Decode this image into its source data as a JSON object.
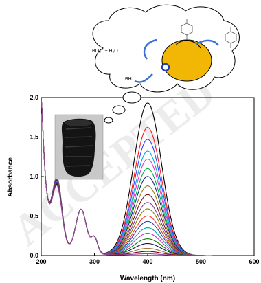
{
  "chart_data": {
    "type": "line",
    "xlabel": "Wavelength (nm)",
    "ylabel": "Absorbance",
    "xlim": [
      200,
      600
    ],
    "ylim": [
      0.0,
      2.0
    ],
    "x_ticks": [
      "200",
      "300",
      "400",
      "500",
      "600"
    ],
    "y_ticks": [
      "0,0",
      "0,5",
      "1,0",
      "1,5",
      "2,0"
    ],
    "grid": false,
    "legend": "none",
    "peak_nm": 400,
    "series": [
      {
        "color": "#000000",
        "peak": 1.93,
        "uv": 0.82
      },
      {
        "color": "#ff1a1a",
        "peak": 1.62,
        "uv": 0.81
      },
      {
        "color": "#3344ff",
        "peak": 1.47,
        "uv": 0.81
      },
      {
        "color": "#00aadd",
        "peak": 1.32,
        "uv": 0.8
      },
      {
        "color": "#ee33cc",
        "peak": 1.22,
        "uv": 0.8
      },
      {
        "color": "#00b050",
        "peak": 1.1,
        "uv": 0.79
      },
      {
        "color": "#1a237e",
        "peak": 1.0,
        "uv": 0.79
      },
      {
        "color": "#9c7a16",
        "peak": 0.88,
        "uv": 0.78
      },
      {
        "color": "#7a0f2a",
        "peak": 0.77,
        "uv": 0.78
      },
      {
        "color": "#7a3d9e",
        "peak": 0.67,
        "uv": 0.77
      },
      {
        "color": "#808000",
        "peak": 0.59,
        "uv": 0.77
      },
      {
        "color": "#ff3030",
        "peak": 0.5,
        "uv": 0.76
      },
      {
        "color": "#2a3fb0",
        "peak": 0.43,
        "uv": 0.76
      },
      {
        "color": "#00a0a0",
        "peak": 0.35,
        "uv": 0.75
      },
      {
        "color": "#c030c0",
        "peak": 0.28,
        "uv": 0.75
      },
      {
        "color": "#008000",
        "peak": 0.21,
        "uv": 0.74
      },
      {
        "color": "#101060",
        "peak": 0.15,
        "uv": 0.74
      },
      {
        "color": "#a07830",
        "peak": 0.09,
        "uv": 0.73
      },
      {
        "color": "#800020",
        "peak": 0.05,
        "uv": 0.73
      },
      {
        "color": "#9050a0",
        "peak": 0.02,
        "uv": 0.72
      }
    ]
  },
  "scheme": {
    "formula_borate": "BO₂⁻ + H₂O",
    "formula_borohydride": "BH₄⁻",
    "particle_color": "#f2b705",
    "arrow_color": "#3a6fd8"
  },
  "inset_photo": {
    "subject": "black carbon sponge monolith"
  },
  "watermark": "ACCEPTED"
}
